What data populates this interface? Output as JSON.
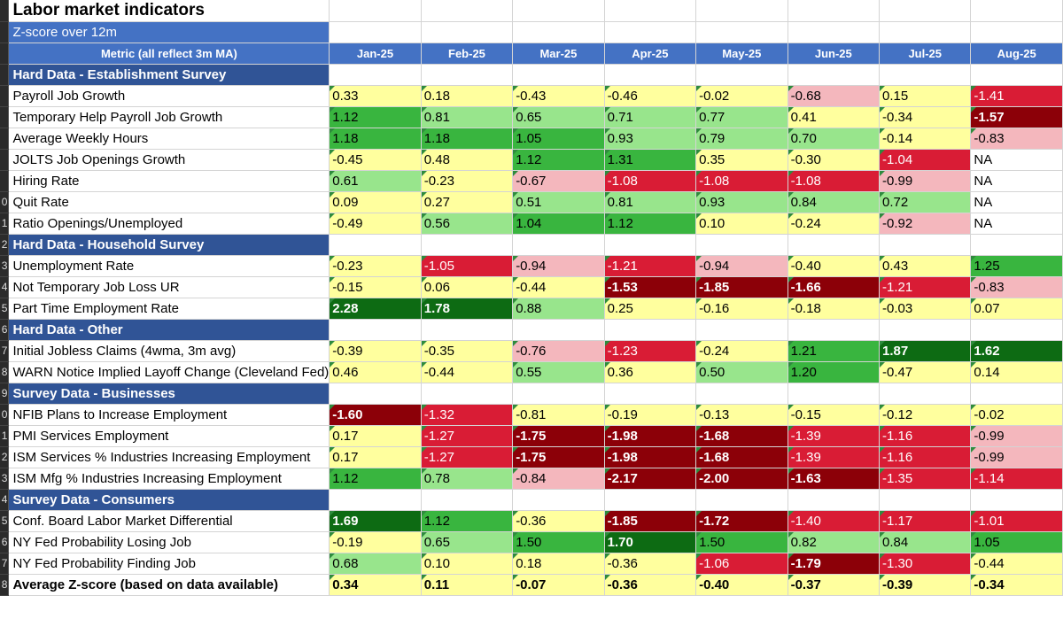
{
  "title": "Labor market indicators",
  "subtitle": "Z-score over 12m",
  "header": {
    "metric_label": "Metric (all reflect 3m MA)",
    "months": [
      "Jan-25",
      "Feb-25",
      "Mar-25",
      "Apr-25",
      "May-25",
      "Jun-25",
      "Jul-25",
      "Aug-25"
    ]
  },
  "row_numbers": [
    "",
    "",
    "",
    "",
    "",
    "",
    "",
    "",
    "",
    "0",
    "1",
    "2",
    "3",
    "4",
    "5",
    "6",
    "7",
    "8",
    "9",
    "0",
    "1",
    "2",
    "3",
    "4",
    "5",
    "6",
    "7",
    "8"
  ],
  "rows": [
    {
      "type": "section",
      "label": "Hard Data - Establishment Survey"
    },
    {
      "type": "data",
      "label": "Payroll Job Growth",
      "values": [
        "0.33",
        "0.18",
        "-0.43",
        "-0.46",
        "-0.02",
        "-0.68",
        "0.15",
        "-1.41"
      ],
      "colors": [
        "y0",
        "y0",
        "y0",
        "y0",
        "y0",
        "p1",
        "y0",
        "r2"
      ]
    },
    {
      "type": "data",
      "label": "Temporary Help Payroll Job Growth",
      "values": [
        "1.12",
        "0.81",
        "0.65",
        "0.71",
        "0.77",
        "0.41",
        "-0.34",
        "-1.57"
      ],
      "colors": [
        "g2",
        "g1",
        "g1",
        "g1",
        "g1",
        "y0",
        "y0",
        "r3"
      ]
    },
    {
      "type": "data",
      "label": "Average Weekly Hours",
      "values": [
        "1.18",
        "1.18",
        "1.05",
        "0.93",
        "0.79",
        "0.70",
        "-0.14",
        "-0.83"
      ],
      "colors": [
        "g2",
        "g2",
        "g2",
        "g1",
        "g1",
        "g1",
        "y0",
        "p1"
      ]
    },
    {
      "type": "data",
      "label": "JOLTS Job Openings Growth",
      "values": [
        "-0.45",
        "0.48",
        "1.12",
        "1.31",
        "0.35",
        "-0.30",
        "-1.04",
        "NA"
      ],
      "colors": [
        "y0",
        "y0",
        "g2",
        "g2",
        "y0",
        "y0",
        "r2",
        "na"
      ]
    },
    {
      "type": "data",
      "label": "Hiring Rate",
      "values": [
        "0.61",
        "-0.23",
        "-0.67",
        "-1.08",
        "-1.08",
        "-1.08",
        "-0.99",
        "NA"
      ],
      "colors": [
        "g1",
        "y0",
        "p1",
        "r2",
        "r2",
        "r2",
        "p1",
        "na"
      ]
    },
    {
      "type": "data",
      "label": "Quit Rate",
      "values": [
        "0.09",
        "0.27",
        "0.51",
        "0.81",
        "0.93",
        "0.84",
        "0.72",
        "NA"
      ],
      "colors": [
        "y0",
        "y0",
        "g1",
        "g1",
        "g1",
        "g1",
        "g1",
        "na"
      ]
    },
    {
      "type": "data",
      "label": "Ratio Openings/Unemployed",
      "values": [
        "-0.49",
        "0.56",
        "1.04",
        "1.12",
        "0.10",
        "-0.24",
        "-0.92",
        "NA"
      ],
      "colors": [
        "y0",
        "g1",
        "g2",
        "g2",
        "y0",
        "y0",
        "p1",
        "na"
      ]
    },
    {
      "type": "section",
      "label": "Hard Data - Household Survey"
    },
    {
      "type": "data",
      "label": "Unemployment Rate",
      "values": [
        "-0.23",
        "-1.05",
        "-0.94",
        "-1.21",
        "-0.94",
        "-0.40",
        "0.43",
        "1.25"
      ],
      "colors": [
        "y0",
        "r2",
        "p1",
        "r2",
        "p1",
        "y0",
        "y0",
        "g2"
      ]
    },
    {
      "type": "data",
      "label": "Not Temporary Job Loss UR",
      "values": [
        "-0.15",
        "0.06",
        "-0.44",
        "-1.53",
        "-1.85",
        "-1.66",
        "-1.21",
        "-0.83"
      ],
      "colors": [
        "y0",
        "y0",
        "y0",
        "r3",
        "r3",
        "r3",
        "r2",
        "p1"
      ]
    },
    {
      "type": "data",
      "label": "Part Time Employment Rate",
      "values": [
        "2.28",
        "1.78",
        "0.88",
        "0.25",
        "-0.16",
        "-0.18",
        "-0.03",
        "0.07"
      ],
      "colors": [
        "g3",
        "g3",
        "g1",
        "y0",
        "y0",
        "y0",
        "y0",
        "y0"
      ]
    },
    {
      "type": "section",
      "label": "Hard Data - Other"
    },
    {
      "type": "data",
      "label": "Initial Jobless Claims (4wma, 3m avg)",
      "values": [
        "-0.39",
        "-0.35",
        "-0.76",
        "-1.23",
        "-0.24",
        "1.21",
        "1.87",
        "1.62"
      ],
      "colors": [
        "y0",
        "y0",
        "p1",
        "r2",
        "y0",
        "g2",
        "g3",
        "g3"
      ]
    },
    {
      "type": "data",
      "label": "WARN Notice Implied Layoff Change (Cleveland Fed)",
      "values": [
        "0.46",
        "-0.44",
        "0.55",
        "0.36",
        "0.50",
        "1.20",
        "-0.47",
        "0.14"
      ],
      "colors": [
        "y0",
        "y0",
        "g1",
        "y0",
        "g1",
        "g2",
        "y0",
        "y0"
      ]
    },
    {
      "type": "section",
      "label": "Survey Data - Businesses"
    },
    {
      "type": "data",
      "label": "NFIB Plans to Increase Employment",
      "values": [
        "-1.60",
        "-1.32",
        "-0.81",
        "-0.19",
        "-0.13",
        "-0.15",
        "-0.12",
        "-0.02"
      ],
      "colors": [
        "r3",
        "r2",
        "y0",
        "y0",
        "y0",
        "y0",
        "y0",
        "y0"
      ]
    },
    {
      "type": "data",
      "label": "PMI Services Employment",
      "values": [
        "0.17",
        "-1.27",
        "-1.75",
        "-1.98",
        "-1.68",
        "-1.39",
        "-1.16",
        "-0.99"
      ],
      "colors": [
        "y0",
        "r2",
        "r3",
        "r3",
        "r3",
        "r2",
        "r2",
        "p1"
      ]
    },
    {
      "type": "data",
      "label": "ISM Services % Industries Increasing Employment",
      "values": [
        "0.17",
        "-1.27",
        "-1.75",
        "-1.98",
        "-1.68",
        "-1.39",
        "-1.16",
        "-0.99"
      ],
      "colors": [
        "y0",
        "r2",
        "r3",
        "r3",
        "r3",
        "r2",
        "r2",
        "p1"
      ]
    },
    {
      "type": "data",
      "label": "ISM Mfg % Industries Increasing Employment",
      "values": [
        "1.12",
        "0.78",
        "-0.84",
        "-2.17",
        "-2.00",
        "-1.63",
        "-1.35",
        "-1.14"
      ],
      "colors": [
        "g2",
        "g1",
        "p1",
        "r3",
        "r3",
        "r3",
        "r2",
        "r2"
      ]
    },
    {
      "type": "section",
      "label": "Survey Data - Consumers"
    },
    {
      "type": "data",
      "label": "Conf. Board Labor Market Differential",
      "values": [
        "1.69",
        "1.12",
        "-0.36",
        "-1.85",
        "-1.72",
        "-1.40",
        "-1.17",
        "-1.01"
      ],
      "colors": [
        "g3",
        "g2",
        "y0",
        "r3",
        "r3",
        "r2",
        "r2",
        "r2"
      ]
    },
    {
      "type": "data",
      "label": "NY Fed Probability Losing Job",
      "values": [
        "-0.19",
        "0.65",
        "1.50",
        "1.70",
        "1.50",
        "0.82",
        "0.84",
        "1.05"
      ],
      "colors": [
        "y0",
        "g1",
        "g2",
        "g3",
        "g2",
        "g1",
        "g1",
        "g2"
      ]
    },
    {
      "type": "data",
      "label": "NY Fed Probability Finding Job",
      "values": [
        "0.68",
        "0.10",
        "0.18",
        "-0.36",
        "-1.06",
        "-1.79",
        "-1.30",
        "-0.44"
      ],
      "colors": [
        "g1",
        "y0",
        "y0",
        "y0",
        "r2",
        "r3",
        "r2",
        "y0"
      ]
    },
    {
      "type": "avg",
      "label": "Average Z-score (based on data available)",
      "values": [
        "0.34",
        "0.11",
        "-0.07",
        "-0.36",
        "-0.40",
        "-0.37",
        "-0.39",
        "-0.34"
      ],
      "colors": [
        "y0",
        "y0",
        "y0",
        "y0",
        "y0",
        "y0",
        "y0",
        "y0"
      ]
    }
  ]
}
